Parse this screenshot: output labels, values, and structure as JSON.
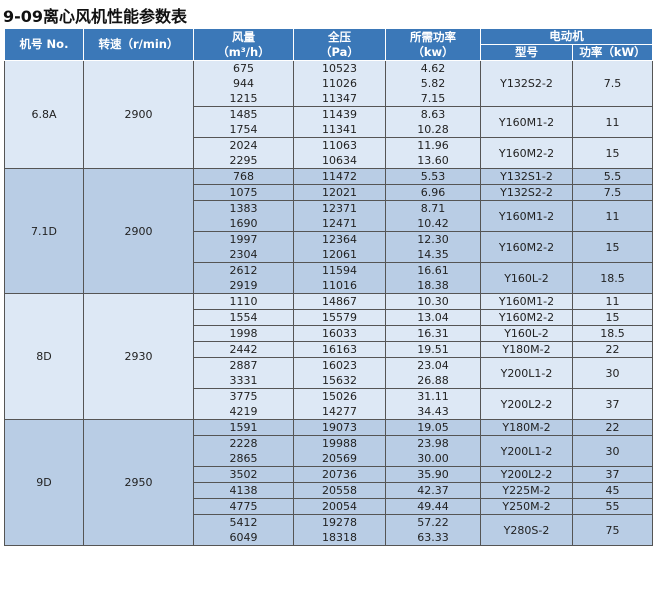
{
  "title": "9-09离心风机性能参数表",
  "header": {
    "model_no": "机号 No.",
    "speed": "转速（r/min）",
    "flow": "风量",
    "flow_unit": "（m³/h）",
    "pressure": "全压",
    "pressure_unit": "（Pa）",
    "power": "所需功率",
    "power_unit": "（kw）",
    "motor": "电动机",
    "motor_model": "型号",
    "motor_power": "功率（kW）"
  },
  "groups": [
    {
      "model_no": "6.8A",
      "speed": "2900",
      "subgroups": [
        {
          "rows": [
            [
              "675",
              "10523",
              "4.62"
            ],
            [
              "944",
              "11026",
              "5.82"
            ],
            [
              "1215",
              "11347",
              "7.15"
            ]
          ],
          "motor": "Y132S2-2",
          "motor_power": "7.5"
        },
        {
          "rows": [
            [
              "1485",
              "11439",
              "8.63"
            ],
            [
              "1754",
              "11341",
              "10.28"
            ]
          ],
          "motor": "Y160M1-2",
          "motor_power": "11"
        },
        {
          "rows": [
            [
              "2024",
              "11063",
              "11.96"
            ],
            [
              "2295",
              "10634",
              "13.60"
            ]
          ],
          "motor": "Y160M2-2",
          "motor_power": "15"
        }
      ]
    },
    {
      "model_no": "7.1D",
      "speed": "2900",
      "subgroups": [
        {
          "rows": [
            [
              "768",
              "11472",
              "5.53"
            ]
          ],
          "motor": "Y132S1-2",
          "motor_power": "5.5"
        },
        {
          "rows": [
            [
              "1075",
              "12021",
              "6.96"
            ]
          ],
          "motor": "Y132S2-2",
          "motor_power": "7.5"
        },
        {
          "rows": [
            [
              "1383",
              "12371",
              "8.71"
            ],
            [
              "1690",
              "12471",
              "10.42"
            ]
          ],
          "motor": "Y160M1-2",
          "motor_power": "11"
        },
        {
          "rows": [
            [
              "1997",
              "12364",
              "12.30"
            ],
            [
              "2304",
              "12061",
              "14.35"
            ]
          ],
          "motor": "Y160M2-2",
          "motor_power": "15"
        },
        {
          "rows": [
            [
              "2612",
              "11594",
              "16.61"
            ],
            [
              "2919",
              "11016",
              "18.38"
            ]
          ],
          "motor": "Y160L-2",
          "motor_power": "18.5"
        }
      ]
    },
    {
      "model_no": "8D",
      "speed": "2930",
      "subgroups": [
        {
          "rows": [
            [
              "1110",
              "14867",
              "10.30"
            ]
          ],
          "motor": "Y160M1-2",
          "motor_power": "11"
        },
        {
          "rows": [
            [
              "1554",
              "15579",
              "13.04"
            ]
          ],
          "motor": "Y160M2-2",
          "motor_power": "15"
        },
        {
          "rows": [
            [
              "1998",
              "16033",
              "16.31"
            ]
          ],
          "motor": "Y160L-2",
          "motor_power": "18.5"
        },
        {
          "rows": [
            [
              "2442",
              "16163",
              "19.51"
            ]
          ],
          "motor": "Y180M-2",
          "motor_power": "22"
        },
        {
          "rows": [
            [
              "2887",
              "16023",
              "23.04"
            ],
            [
              "3331",
              "15632",
              "26.88"
            ]
          ],
          "motor": "Y200L1-2",
          "motor_power": "30"
        },
        {
          "rows": [
            [
              "3775",
              "15026",
              "31.11"
            ],
            [
              "4219",
              "14277",
              "34.43"
            ]
          ],
          "motor": "Y200L2-2",
          "motor_power": "37"
        }
      ]
    },
    {
      "model_no": "9D",
      "speed": "2950",
      "subgroups": [
        {
          "rows": [
            [
              "1591",
              "19073",
              "19.05"
            ]
          ],
          "motor": "Y180M-2",
          "motor_power": "22"
        },
        {
          "rows": [
            [
              "2228",
              "19988",
              "23.98"
            ],
            [
              "2865",
              "20569",
              "30.00"
            ]
          ],
          "motor": "Y200L1-2",
          "motor_power": "30"
        },
        {
          "rows": [
            [
              "3502",
              "20736",
              "35.90"
            ]
          ],
          "motor": "Y200L2-2",
          "motor_power": "37"
        },
        {
          "rows": [
            [
              "4138",
              "20558",
              "42.37"
            ]
          ],
          "motor": "Y225M-2",
          "motor_power": "45"
        },
        {
          "rows": [
            [
              "4775",
              "20054",
              "49.44"
            ]
          ],
          "motor": "Y250M-2",
          "motor_power": "55"
        },
        {
          "rows": [
            [
              "5412",
              "19278",
              "57.22"
            ],
            [
              "6049",
              "18318",
              "63.33"
            ]
          ],
          "motor": "Y280S-2",
          "motor_power": "75"
        }
      ]
    }
  ]
}
